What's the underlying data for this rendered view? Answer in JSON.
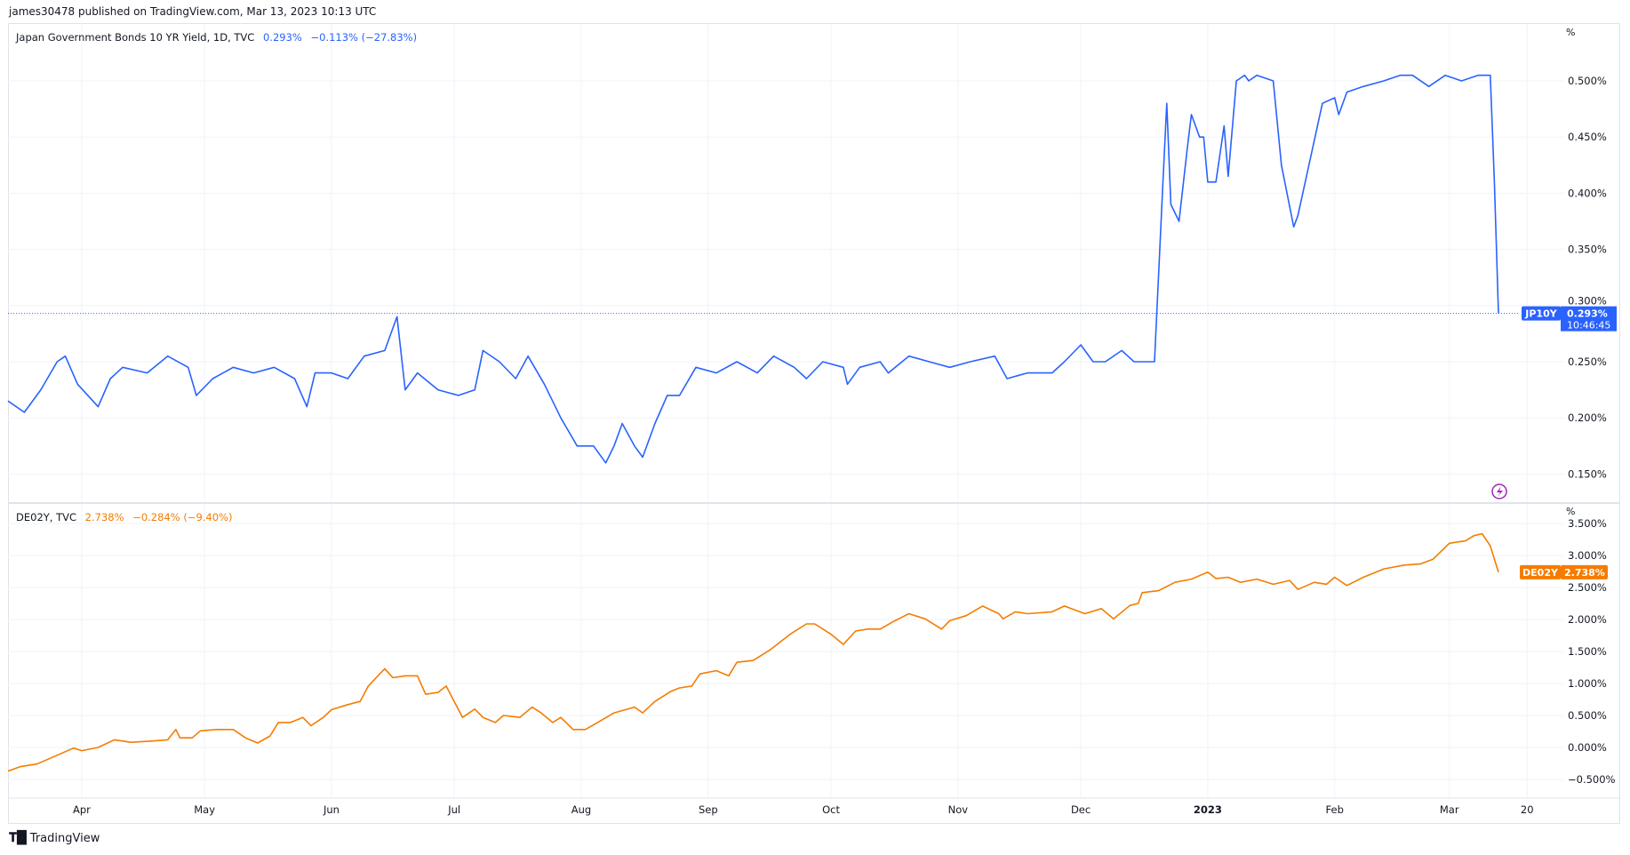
{
  "header": {
    "published": "james30478 published on TradingView.com, Mar 13, 2023 10:13 UTC"
  },
  "footer": {
    "brand": "TradingView"
  },
  "colors": {
    "jp": "#2962ff",
    "de": "#f57c00",
    "grid": "#f0f3fa",
    "alert": "#9c27b0"
  },
  "chart_data": [
    {
      "type": "line",
      "title": "Japan Government Bonds 10 YR Yield, 1D, TVC",
      "legend": {
        "symbol": "Japan Government Bonds 10 YR Yield, 1D, TVC",
        "last": "0.293%",
        "change": "−0.113% (−27.83%)"
      },
      "axis_unit": "%",
      "label": {
        "symbol": "JP10Y",
        "value": "0.293%",
        "countdown": "10:46:45"
      },
      "ylim": [
        0.125,
        0.525
      ],
      "yticks": [
        "0.150%",
        "0.200%",
        "0.250%",
        "0.300%",
        "0.350%",
        "0.400%",
        "0.450%",
        "0.500%"
      ],
      "ytick_values": [
        0.15,
        0.2,
        0.25,
        0.3,
        0.35,
        0.4,
        0.45,
        0.5
      ],
      "last_value": 0.293,
      "x_days": [
        0,
        4,
        8,
        12,
        14,
        17,
        22,
        25,
        28,
        34,
        39,
        44,
        46,
        50,
        55,
        60,
        65,
        70,
        73,
        75,
        79,
        83,
        87,
        92,
        95,
        97,
        100,
        105,
        110,
        114,
        116,
        120,
        124,
        127,
        131,
        135,
        139,
        143,
        146,
        148,
        150,
        153,
        155,
        158,
        161,
        164,
        168,
        173,
        178,
        183,
        187,
        192,
        195,
        199,
        204,
        205,
        208,
        213,
        215,
        220,
        225,
        230,
        235,
        241,
        244,
        249,
        255,
        258,
        262,
        265,
        268,
        272,
        275,
        280,
        282,
        283,
        284,
        286,
        288,
        289,
        291,
        292,
        293,
        295,
        297,
        298,
        300,
        302,
        303,
        305,
        309,
        311,
        314,
        315,
        318,
        321,
        324,
        325,
        327,
        331,
        336,
        340,
        343,
        347,
        351,
        355,
        359,
        362,
        363,
        364
      ],
      "values": [
        0.215,
        0.205,
        0.225,
        0.25,
        0.255,
        0.23,
        0.21,
        0.235,
        0.245,
        0.24,
        0.255,
        0.245,
        0.22,
        0.235,
        0.245,
        0.24,
        0.245,
        0.235,
        0.21,
        0.24,
        0.24,
        0.235,
        0.255,
        0.26,
        0.29,
        0.225,
        0.24,
        0.225,
        0.22,
        0.225,
        0.26,
        0.25,
        0.235,
        0.255,
        0.23,
        0.2,
        0.175,
        0.175,
        0.16,
        0.175,
        0.195,
        0.175,
        0.165,
        0.195,
        0.22,
        0.22,
        0.245,
        0.24,
        0.25,
        0.24,
        0.255,
        0.245,
        0.235,
        0.25,
        0.245,
        0.23,
        0.245,
        0.25,
        0.24,
        0.255,
        0.25,
        0.245,
        0.25,
        0.255,
        0.235,
        0.24,
        0.24,
        0.25,
        0.265,
        0.25,
        0.25,
        0.26,
        0.25,
        0.25,
        0.405,
        0.48,
        0.39,
        0.375,
        0.44,
        0.47,
        0.45,
        0.45,
        0.41,
        0.41,
        0.46,
        0.415,
        0.5,
        0.505,
        0.5,
        0.505,
        0.5,
        0.425,
        0.37,
        0.38,
        0.43,
        0.48,
        0.485,
        0.47,
        0.49,
        0.495,
        0.5,
        0.505,
        0.505,
        0.495,
        0.505,
        0.5,
        0.505,
        0.505,
        0.41,
        0.293
      ]
    },
    {
      "type": "line",
      "title": "DE02Y, TVC",
      "legend": {
        "symbol": "DE02Y, TVC",
        "last": "2.738%",
        "change": "−0.284% (−9.40%)"
      },
      "axis_unit": "%",
      "label": {
        "symbol": "DE02Y",
        "value": "2.738%"
      },
      "ylim": [
        -0.75,
        3.5
      ],
      "yticks": [
        "−0.500%",
        "0.000%",
        "0.500%",
        "1.000%",
        "1.500%",
        "2.000%",
        "2.500%",
        "3.000%",
        "3.500%"
      ],
      "ytick_values": [
        -0.5,
        0,
        0.5,
        1,
        1.5,
        2,
        2.5,
        3,
        3.5
      ],
      "last_value": 2.738,
      "x_days": [
        0,
        3,
        7,
        11,
        16,
        18,
        22,
        26,
        30,
        35,
        39,
        41,
        42,
        45,
        47,
        51,
        55,
        58,
        61,
        64,
        66,
        69,
        72,
        74,
        77,
        79,
        83,
        86,
        88,
        92,
        94,
        97,
        100,
        102,
        105,
        107,
        111,
        114,
        116,
        119,
        121,
        125,
        128,
        130,
        133,
        135,
        138,
        141,
        144,
        148,
        153,
        155,
        158,
        162,
        164,
        167,
        169,
        173,
        176,
        178,
        182,
        186,
        191,
        195,
        197,
        201,
        204,
        207,
        210,
        213,
        216,
        220,
        224,
        228,
        230,
        234,
        238,
        242,
        243,
        246,
        249,
        255,
        258,
        263,
        267,
        270,
        274,
        276,
        277,
        281,
        285,
        289,
        293,
        295,
        298,
        301,
        305,
        309,
        313,
        315,
        319,
        322,
        324,
        327,
        331,
        336,
        341,
        345,
        348,
        352,
        356,
        358,
        360,
        362,
        364
      ],
      "values": [
        -0.37,
        -0.3,
        -0.26,
        -0.15,
        -0.01,
        -0.05,
        0,
        0.12,
        0.08,
        0.1,
        0.12,
        0.28,
        0.15,
        0.15,
        0.26,
        0.28,
        0.28,
        0.15,
        0.07,
        0.18,
        0.39,
        0.39,
        0.47,
        0.34,
        0.47,
        0.59,
        0.67,
        0.72,
        0.96,
        1.23,
        1.09,
        1.12,
        1.12,
        0.83,
        0.86,
        0.96,
        0.47,
        0.6,
        0.47,
        0.39,
        0.5,
        0.47,
        0.63,
        0.55,
        0.39,
        0.47,
        0.28,
        0.28,
        0.39,
        0.54,
        0.63,
        0.54,
        0.72,
        0.88,
        0.93,
        0.96,
        1.15,
        1.2,
        1.12,
        1.33,
        1.36,
        1.52,
        1.77,
        1.93,
        1.93,
        1.77,
        1.61,
        1.82,
        1.85,
        1.85,
        1.96,
        2.09,
        2.01,
        1.85,
        1.98,
        2.06,
        2.21,
        2.09,
        2.01,
        2.12,
        2.09,
        2.12,
        2.21,
        2.09,
        2.17,
        2.01,
        2.22,
        2.25,
        2.42,
        2.45,
        2.58,
        2.63,
        2.74,
        2.64,
        2.66,
        2.58,
        2.63,
        2.55,
        2.61,
        2.47,
        2.58,
        2.55,
        2.66,
        2.53,
        2.66,
        2.79,
        2.85,
        2.87,
        2.94,
        3.19,
        3.23,
        3.31,
        3.34,
        3.15,
        2.74
      ]
    }
  ],
  "time_axis": {
    "labels": [
      "Apr",
      "May",
      "Jun",
      "Jul",
      "Aug",
      "Sep",
      "Oct",
      "Nov",
      "Dec",
      "2023",
      "Feb",
      "Mar",
      "20"
    ],
    "days": [
      18,
      48,
      79,
      109,
      140,
      171,
      201,
      232,
      262,
      293,
      324,
      352,
      371
    ],
    "bold": [
      false,
      false,
      false,
      false,
      false,
      false,
      false,
      false,
      false,
      true,
      false,
      false,
      false
    ]
  }
}
